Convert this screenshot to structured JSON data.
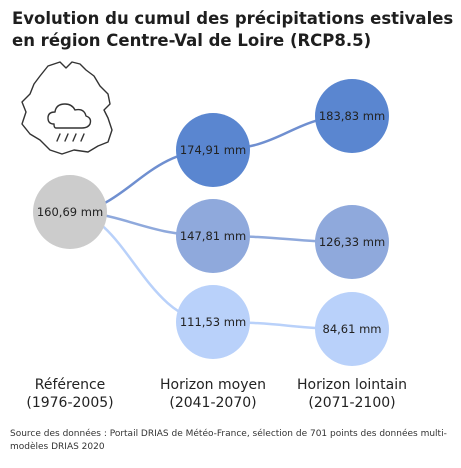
{
  "title": {
    "line1": "Evolution du cumul des précipitations estivales",
    "line2": "en région Centre-Val de Loire (RCP8.5)"
  },
  "icon": "region-map-with-rain-cloud",
  "chart_data": {
    "type": "bubble-flow",
    "columns": [
      {
        "line1": "Référence",
        "line2": "(1976-2005)"
      },
      {
        "line1": "Horizon moyen",
        "line2": "(2041-2070)"
      },
      {
        "line1": "Horizon lointain",
        "line2": "(2071-2100)"
      }
    ],
    "unit": "mm",
    "reference": {
      "value": 160.69,
      "label": "160,69 mm",
      "color": "#cccccc"
    },
    "series": [
      {
        "mid": {
          "value": 174.91,
          "label": "174,91 mm"
        },
        "far": {
          "value": 183.83,
          "label": "183,83 mm"
        },
        "color": "#5a86d0",
        "line": "#6f8fd0"
      },
      {
        "mid": {
          "value": 147.81,
          "label": "147,81 mm"
        },
        "far": {
          "value": 126.33,
          "label": "126,33 mm"
        },
        "color": "#8fa9dc",
        "line": "#8fa9dc"
      },
      {
        "mid": {
          "value": 111.53,
          "label": "111,53 mm"
        },
        "far": {
          "value": 84.61,
          "label": "84,61 mm"
        },
        "color": "#b9d1fa",
        "line": "#b9d1fa"
      }
    ]
  },
  "source": "Source des données : Portail DRIAS de Météo-France, sélection de 701 points des données multi-modèles DRIAS 2020"
}
